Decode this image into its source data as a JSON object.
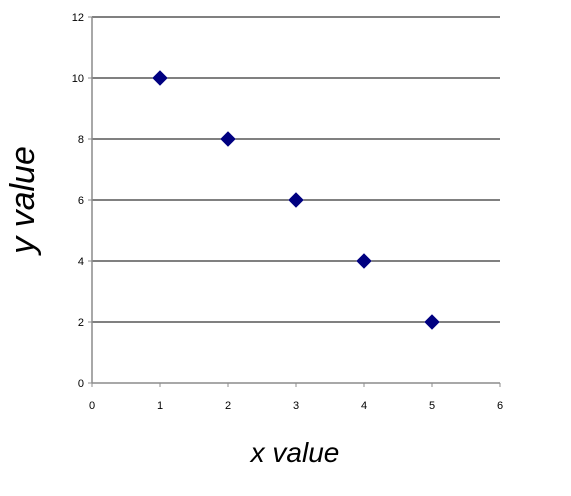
{
  "chart_data": {
    "type": "scatter",
    "title": "",
    "xlabel": "x value",
    "ylabel": "y value",
    "xlim": [
      0,
      6
    ],
    "ylim": [
      0,
      12
    ],
    "x_ticks": [
      0,
      1,
      2,
      3,
      4,
      5,
      6
    ],
    "y_ticks": [
      0,
      2,
      4,
      6,
      8,
      10,
      12
    ],
    "grid": {
      "horizontal": true,
      "vertical": false
    },
    "legend": "none",
    "series": [
      {
        "x": [
          1,
          2,
          3,
          4,
          5
        ],
        "y": [
          10,
          8,
          6,
          4,
          2
        ],
        "marker": "diamond",
        "color": "#000080"
      }
    ]
  }
}
